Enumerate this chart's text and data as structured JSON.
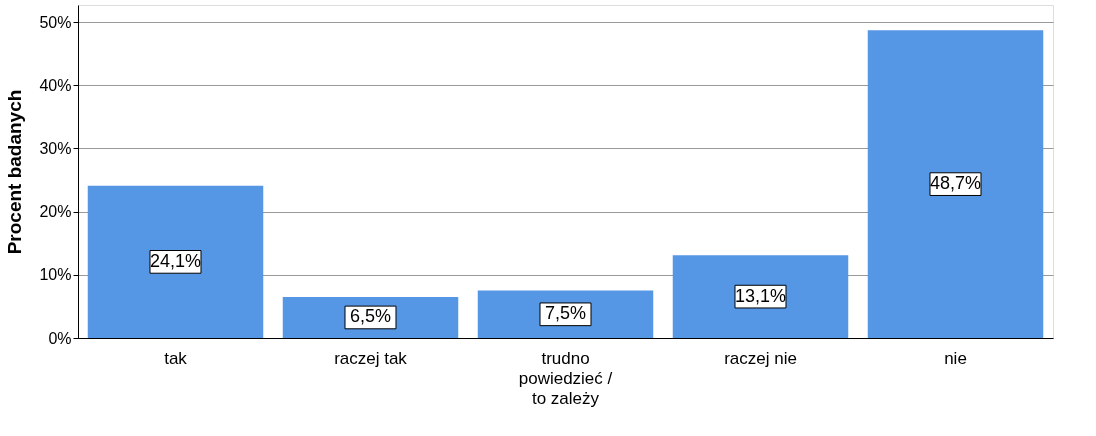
{
  "chart_data": {
    "type": "bar",
    "ylabel": "Procent badanych",
    "categories": [
      "tak",
      "raczej tak",
      "trudno powiedzieć / to zależy",
      "raczej nie",
      "nie"
    ],
    "values": [
      24.1,
      6.5,
      7.5,
      13.1,
      48.7
    ],
    "value_labels": [
      "24,1%",
      "6,5%",
      "7,5%",
      "13,1%",
      "48,7%"
    ],
    "color": "#5596e5",
    "ylim": [
      0,
      52.7
    ],
    "yticks": [
      {
        "value": 0,
        "label": "0%"
      },
      {
        "value": 10,
        "label": "10%"
      },
      {
        "value": 20,
        "label": "20%"
      },
      {
        "value": 30,
        "label": "30%"
      },
      {
        "value": 40,
        "label": "40%"
      },
      {
        "value": 50,
        "label": "50%"
      }
    ],
    "grid": "y"
  }
}
